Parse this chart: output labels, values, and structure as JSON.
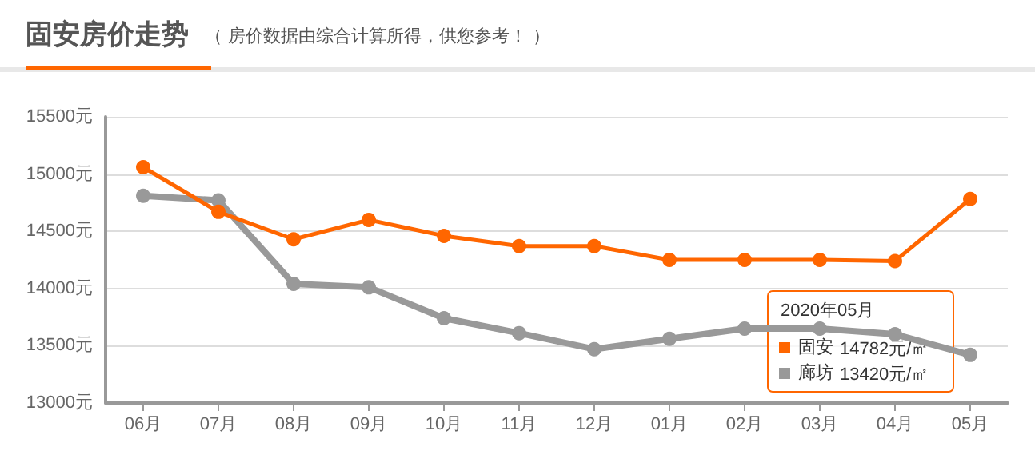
{
  "chart_data": {
    "type": "line",
    "title": "固安房价走势",
    "subtitle": "（ 房价数据由综合计算所得，供您参考！ ）",
    "categories": [
      "06月",
      "07月",
      "08月",
      "09月",
      "10月",
      "11月",
      "12月",
      "01月",
      "02月",
      "03月",
      "04月",
      "05月"
    ],
    "series": [
      {
        "name": "固安",
        "color": "#ff6600",
        "values": [
          15060,
          14670,
          14430,
          14600,
          14460,
          14370,
          14370,
          14250,
          14250,
          14250,
          14240,
          14782
        ]
      },
      {
        "name": "廊坊",
        "color": "#999999",
        "values": [
          14810,
          14770,
          14040,
          14010,
          13740,
          13610,
          13470,
          13560,
          13650,
          13650,
          13600,
          13420
        ]
      }
    ],
    "annotations": [
      "2020年05月",
      "14782元/㎡",
      "13420元/㎡"
    ],
    "ylim": [
      13000,
      15500
    ],
    "yticks": [
      {
        "value": 13000,
        "label": "13000元"
      },
      {
        "value": 13500,
        "label": "13500元"
      },
      {
        "value": 14000,
        "label": "14000元"
      },
      {
        "value": 14500,
        "label": "14500元"
      },
      {
        "value": 15000,
        "label": "15000元"
      },
      {
        "value": 15500,
        "label": "15500元"
      }
    ],
    "grid": "y",
    "marker": "circle",
    "legend": "bottom right",
    "line_style": "solid"
  }
}
